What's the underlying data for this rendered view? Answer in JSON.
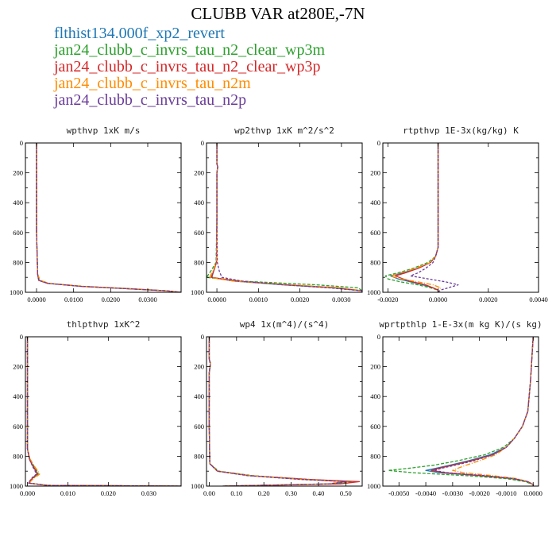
{
  "figure": {
    "title": "CLUBB VAR at280E,-7N"
  },
  "legend": [
    {
      "label": "flthist134.000f_xp2_revert",
      "color": "#1f77b4",
      "dash": ""
    },
    {
      "label": "jan24_clubb_c_invrs_tau_n2_clear_wp3m",
      "color": "#2ca02c",
      "dash": "4,2"
    },
    {
      "label": "jan24_clubb_c_invrs_tau_n2_clear_wp3p",
      "color": "#d62728",
      "dash": ""
    },
    {
      "label": "jan24_clubb_c_invrs_tau_n2m",
      "color": "#ff8c00",
      "dash": "6,2,1,2"
    },
    {
      "label": "jan24_clubb_c_invrs_tau_n2p",
      "color": "#6a3d9a",
      "dash": "3,2"
    }
  ],
  "chart_data": [
    {
      "type": "line",
      "title": "wpthvp  1xK m/s",
      "xlim": [
        -0.0003,
        0.0039
      ],
      "ylim": [
        0,
        1000
      ],
      "y_inverted": true,
      "xticks": [
        0.0,
        0.01,
        0.02,
        0.03
      ],
      "xtick_labels": [
        "0.0000",
        "0.0100",
        "0.0200",
        "0.0300"
      ],
      "xtick_scale": 0.1,
      "yticks": [
        0,
        200,
        400,
        600,
        800,
        1000
      ],
      "ytick_labels": [
        "0",
        "200",
        "400",
        "600",
        "800",
        "1000"
      ],
      "y": [
        0,
        100,
        300,
        600,
        880,
        920,
        940,
        960,
        975,
        990,
        1000
      ],
      "series": [
        {
          "x": [
            0,
            0,
            0,
            0,
            3e-05,
            6e-05,
            0.0003,
            0.0012,
            0.0024,
            0.0035,
            0.0039
          ]
        },
        {
          "x": [
            0,
            0,
            0,
            0,
            3e-05,
            8e-05,
            0.00032,
            0.0012,
            0.0024,
            0.0035,
            0.0039
          ]
        },
        {
          "x": [
            0,
            0,
            0,
            0,
            3e-05,
            6e-05,
            0.0003,
            0.0012,
            0.0024,
            0.0035,
            0.0039
          ]
        },
        {
          "x": [
            0,
            0,
            0,
            0,
            3e-05,
            0.0001,
            0.00034,
            0.0013,
            0.0025,
            0.0035,
            0.0039
          ]
        },
        {
          "x": [
            0,
            0,
            0,
            0,
            3e-05,
            6e-05,
            0.0003,
            0.0012,
            0.0024,
            0.0035,
            0.0039
          ]
        }
      ]
    },
    {
      "type": "line",
      "title": "wp2thvp  1xK m^2/s^2",
      "xlim": [
        -0.00025,
        0.0035
      ],
      "ylim": [
        0,
        1000
      ],
      "y_inverted": true,
      "xticks": [
        0.0,
        0.001,
        0.002,
        0.003
      ],
      "xtick_labels": [
        "0.0000",
        "0.0010",
        "0.0020",
        "0.0030"
      ],
      "yticks": [
        0,
        200,
        400,
        600,
        800,
        1000
      ],
      "ytick_labels": [
        "0",
        "200",
        "400",
        "600",
        "800",
        "1000"
      ],
      "y": [
        0,
        140,
        160,
        200,
        500,
        800,
        860,
        900,
        925,
        950,
        970,
        990,
        1000
      ],
      "series": [
        {
          "x": [
            0,
            0,
            2e-05,
            0,
            0,
            -1e-05,
            -8e-05,
            -0.00012,
            0.0004,
            0.0016,
            0.0028,
            0.0035,
            0.0035
          ]
        },
        {
          "x": [
            0,
            0,
            2e-05,
            0,
            0,
            -2e-05,
            -0.00015,
            -0.00025,
            0.0006,
            0.0024,
            0.0034,
            0.0035,
            0.0035
          ]
        },
        {
          "x": [
            0,
            0,
            2e-05,
            0,
            0,
            -1e-05,
            -8e-05,
            -0.00014,
            0.0005,
            0.0017,
            0.0029,
            0.0035,
            0.0035
          ]
        },
        {
          "x": [
            0,
            0,
            2e-05,
            0,
            0,
            -1e-05,
            -0.0001,
            -0.00018,
            0.0004,
            0.0018,
            0.003,
            0.0035,
            0.0035
          ]
        },
        {
          "x": [
            0,
            0,
            2e-05,
            0,
            0,
            1e-05,
            6e-05,
            0.00012,
            0.0006,
            0.0016,
            0.0027,
            0.0035,
            0.0035
          ]
        }
      ]
    },
    {
      "type": "line",
      "title": "rtpthvp  1E-3x(kg/kg) K",
      "xlim": [
        -0.0022,
        0.004
      ],
      "ylim": [
        0,
        1000
      ],
      "y_inverted": true,
      "xticks": [
        -0.002,
        0.0,
        0.002,
        0.004
      ],
      "xtick_labels": [
        "-0.0020",
        "0.0000",
        "0.0020",
        "0.0040"
      ],
      "yticks": [
        0,
        200,
        400,
        600,
        800,
        1000
      ],
      "ytick_labels": [
        "0",
        "200",
        "400",
        "600",
        "800",
        "1000"
      ],
      "y": [
        0,
        400,
        700,
        760,
        800,
        840,
        870,
        890,
        910,
        930,
        950,
        970,
        985,
        1000
      ],
      "series": [
        {
          "x": [
            0,
            0,
            0,
            -0.0001,
            -0.0003,
            -0.0008,
            -0.0014,
            -0.0019,
            -0.0016,
            -0.0011,
            -0.0006,
            -0.0002,
            0,
            0
          ]
        },
        {
          "x": [
            0,
            0,
            0,
            -0.0001,
            -0.0004,
            -0.001,
            -0.0016,
            -0.0021,
            -0.002,
            -0.0015,
            -0.0008,
            -0.0003,
            0,
            0
          ]
        },
        {
          "x": [
            0,
            0,
            0,
            -0.0001,
            -0.0003,
            -0.0008,
            -0.0013,
            -0.0017,
            -0.0014,
            -0.001,
            -0.0005,
            -0.0002,
            0,
            0
          ]
        },
        {
          "x": [
            0,
            0,
            0,
            -0.0001,
            -0.0003,
            -0.0009,
            -0.0015,
            -0.0019,
            -0.0015,
            -0.0008,
            -0.0002,
            0.0001,
            0,
            0
          ]
        },
        {
          "x": [
            0,
            0,
            0,
            -0.0001,
            -0.0002,
            -0.0005,
            -0.0008,
            -0.0011,
            -0.0004,
            0.0003,
            0.0008,
            0.0004,
            0.0001,
            0
          ]
        }
      ]
    },
    {
      "type": "line",
      "title": "thlpthvp  1xK^2",
      "xlim": [
        -0.0005,
        0.038
      ],
      "ylim": [
        0,
        1000
      ],
      "y_inverted": true,
      "xticks": [
        0.0,
        0.01,
        0.02,
        0.03
      ],
      "xtick_labels": [
        "0.000",
        "0.010",
        "0.020",
        "0.030"
      ],
      "yticks": [
        0,
        200,
        400,
        600,
        800,
        1000
      ],
      "ytick_labels": [
        "0",
        "200",
        "400",
        "600",
        "800",
        "1000"
      ],
      "y": [
        0,
        600,
        750,
        820,
        870,
        900,
        920,
        940,
        960,
        980,
        995,
        1000
      ],
      "series": [
        {
          "x": [
            0,
            0,
            0,
            0.0005,
            0.0015,
            0.0022,
            0.0025,
            0.0015,
            0.0008,
            0.0003,
            0.005,
            0.038
          ]
        },
        {
          "x": [
            0,
            0,
            0,
            0.0006,
            0.0017,
            0.0024,
            0.0027,
            0.0017,
            0.0009,
            0.0004,
            0.005,
            0.038
          ]
        },
        {
          "x": [
            0,
            0,
            0,
            0.0005,
            0.0014,
            0.0021,
            0.0024,
            0.0015,
            0.0008,
            0.0003,
            0.005,
            0.038
          ]
        },
        {
          "x": [
            0,
            0,
            0,
            0.0007,
            0.0018,
            0.0026,
            0.003,
            0.002,
            0.0011,
            0.0004,
            0.005,
            0.038
          ]
        },
        {
          "x": [
            0,
            0,
            0,
            0.0005,
            0.0013,
            0.0019,
            0.0022,
            0.0013,
            0.0007,
            0.0003,
            0.005,
            0.038
          ]
        }
      ]
    },
    {
      "type": "line",
      "title": "wp4  1x(m^4)/(s^4)",
      "xlim": [
        -0.01,
        0.56
      ],
      "ylim": [
        0,
        1000
      ],
      "y_inverted": true,
      "xticks": [
        0.0,
        0.1,
        0.2,
        0.3,
        0.4,
        0.5
      ],
      "xtick_labels": [
        "0.00",
        "0.10",
        "0.20",
        "0.30",
        "0.40",
        "0.50"
      ],
      "yticks": [
        0,
        200,
        400,
        600,
        800,
        1000
      ],
      "ytick_labels": [
        "0",
        "200",
        "400",
        "600",
        "800",
        "1000"
      ],
      "y": [
        0,
        150,
        180,
        210,
        240,
        600,
        850,
        900,
        930,
        955,
        970,
        985,
        1000
      ],
      "series": [
        {
          "x": [
            0,
            0,
            0.004,
            0.002,
            0,
            0,
            0.002,
            0.03,
            0.15,
            0.35,
            0.5,
            0.45,
            0.05
          ]
        },
        {
          "x": [
            0,
            0,
            0.005,
            0.003,
            0,
            0,
            0.002,
            0.035,
            0.16,
            0.36,
            0.52,
            0.46,
            0.05
          ]
        },
        {
          "x": [
            0,
            0,
            0.004,
            0.002,
            0,
            0,
            0.002,
            0.03,
            0.15,
            0.36,
            0.55,
            0.48,
            0.05
          ]
        },
        {
          "x": [
            0,
            0,
            0.004,
            0.002,
            0,
            0,
            0.002,
            0.032,
            0.15,
            0.34,
            0.49,
            0.44,
            0.05
          ]
        },
        {
          "x": [
            0,
            0,
            0.004,
            0.002,
            0,
            0,
            0.002,
            0.03,
            0.14,
            0.33,
            0.5,
            0.44,
            0.05
          ]
        }
      ]
    },
    {
      "type": "line",
      "title": "wprtpthlp  1-E-3x(m kg K)/(s kg)",
      "xlim": [
        -0.0056,
        0.0002
      ],
      "ylim": [
        0,
        1000
      ],
      "y_inverted": true,
      "xticks": [
        -0.005,
        -0.004,
        -0.003,
        -0.002,
        -0.001,
        0.0
      ],
      "xtick_labels": [
        "-0.0050",
        "-0.0040",
        "-0.0030",
        "-0.0020",
        "-0.0010",
        "0.0000"
      ],
      "yticks": [
        0,
        200,
        400,
        600,
        800,
        1000
      ],
      "ytick_labels": [
        "0",
        "200",
        "400",
        "600",
        "800",
        "1000"
      ],
      "y": [
        0,
        300,
        500,
        600,
        680,
        740,
        790,
        830,
        860,
        880,
        895,
        910,
        930,
        950,
        970,
        990,
        1000
      ],
      "series": [
        {
          "x": [
            0,
            -0.0001,
            -0.0002,
            -0.0004,
            -0.0007,
            -0.001,
            -0.0016,
            -0.0024,
            -0.0031,
            -0.0036,
            -0.004,
            -0.0035,
            -0.002,
            -0.0008,
            -0.0002,
            0,
            0
          ]
        },
        {
          "x": [
            0,
            -0.0001,
            -0.0002,
            -0.0004,
            -0.0007,
            -0.0011,
            -0.0018,
            -0.0028,
            -0.0037,
            -0.0046,
            -0.0054,
            -0.0045,
            -0.0025,
            -0.001,
            -0.0003,
            0,
            0
          ]
        },
        {
          "x": [
            0,
            -0.0001,
            -0.0002,
            -0.0004,
            -0.0007,
            -0.001,
            -0.0015,
            -0.0023,
            -0.003,
            -0.0035,
            -0.0038,
            -0.0033,
            -0.0019,
            -0.0007,
            -0.0002,
            0,
            0
          ]
        },
        {
          "x": [
            0,
            -0.0001,
            -0.0002,
            -0.0004,
            -0.0007,
            -0.001,
            -0.0014,
            -0.002,
            -0.0025,
            -0.0028,
            -0.003,
            -0.0026,
            -0.0015,
            -0.0006,
            -0.0002,
            0,
            0
          ]
        },
        {
          "x": [
            0,
            -0.0001,
            -0.0002,
            -0.0004,
            -0.0007,
            -0.001,
            -0.0015,
            -0.0022,
            -0.0029,
            -0.0034,
            -0.0037,
            -0.0032,
            -0.0018,
            -0.0007,
            -0.0002,
            0,
            0
          ]
        }
      ]
    }
  ]
}
